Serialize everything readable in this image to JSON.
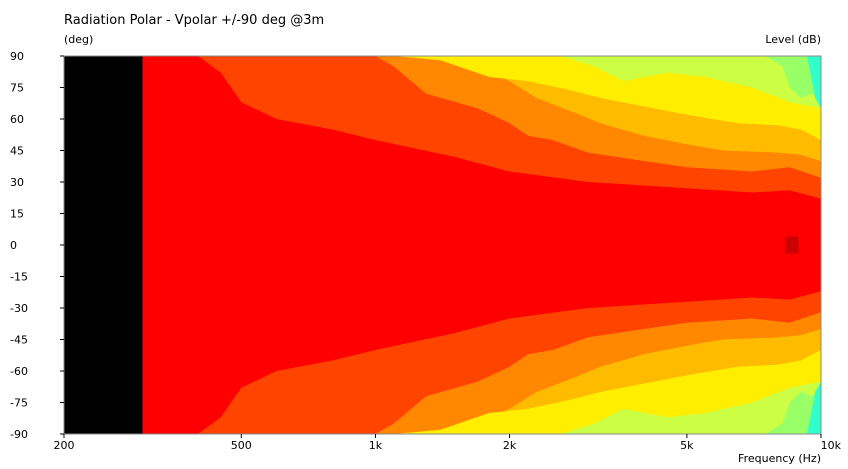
{
  "chart_data": {
    "type": "heatmap",
    "title": "Radiation Polar - Vpolar +/-90 deg @3m",
    "ylabel": "(deg)",
    "colorbar_label": "Level  (dB)",
    "xlabel": "Frequency  (Hz)",
    "x_scale": "log",
    "xlim": [
      200,
      10000
    ],
    "ylim": [
      -90,
      90
    ],
    "x_ticks": [
      {
        "value": 200,
        "label": "200"
      },
      {
        "value": 500,
        "label": "500"
      },
      {
        "value": 1000,
        "label": "1k"
      },
      {
        "value": 2000,
        "label": "2k"
      },
      {
        "value": 5000,
        "label": "5k"
      },
      {
        "value": 10000,
        "label": "10k"
      }
    ],
    "y_ticks": [
      90,
      75,
      60,
      45,
      30,
      15,
      0,
      -15,
      -30,
      -45,
      -60,
      -75,
      -90
    ],
    "no_data_below_hz": 300,
    "no_data_color": "#000000",
    "color_bands": [
      {
        "name": "band-1",
        "color": "#ff0000"
      },
      {
        "name": "band-2",
        "color": "#ff4400"
      },
      {
        "name": "band-3",
        "color": "#ff8800"
      },
      {
        "name": "band-4",
        "color": "#ffbb00"
      },
      {
        "name": "band-5",
        "color": "#ffee00"
      },
      {
        "name": "band-6",
        "color": "#ccff44"
      },
      {
        "name": "band-7",
        "color": "#99ff66"
      },
      {
        "name": "band-8",
        "color": "#33ffcc"
      }
    ],
    "contours": [
      {
        "band": "band-2",
        "points": [
          [
            300,
            90
          ],
          [
            400,
            90
          ],
          [
            450,
            82
          ],
          [
            500,
            68
          ],
          [
            600,
            60
          ],
          [
            800,
            55
          ],
          [
            1000,
            50
          ],
          [
            1500,
            42
          ],
          [
            2000,
            35
          ],
          [
            3000,
            30
          ],
          [
            5000,
            27
          ],
          [
            7000,
            25
          ],
          [
            8500,
            26
          ],
          [
            10000,
            22
          ]
        ]
      },
      {
        "band": "band-3",
        "points": [
          [
            350,
            90
          ],
          [
            1000,
            90
          ],
          [
            1100,
            85
          ],
          [
            1300,
            72
          ],
          [
            1700,
            65
          ],
          [
            2000,
            58
          ],
          [
            2200,
            52
          ],
          [
            2500,
            50
          ],
          [
            3000,
            44
          ],
          [
            4000,
            40
          ],
          [
            5000,
            37
          ],
          [
            7000,
            35
          ],
          [
            8500,
            37
          ],
          [
            10000,
            32
          ]
        ]
      },
      {
        "band": "band-4",
        "points": [
          [
            550,
            90
          ],
          [
            1500,
            90
          ],
          [
            1700,
            85
          ],
          [
            2000,
            78
          ],
          [
            2300,
            70
          ],
          [
            2800,
            63
          ],
          [
            3200,
            58
          ],
          [
            4000,
            52
          ],
          [
            5000,
            48
          ],
          [
            6000,
            45
          ],
          [
            8000,
            44
          ],
          [
            9000,
            43
          ],
          [
            10000,
            40
          ]
        ]
      },
      {
        "band": "band-5",
        "points": [
          [
            1100,
            90
          ],
          [
            1400,
            88
          ],
          [
            1800,
            80
          ],
          [
            2200,
            78
          ],
          [
            2700,
            74
          ],
          [
            3200,
            70
          ],
          [
            4000,
            66
          ],
          [
            5000,
            62
          ],
          [
            6500,
            58
          ],
          [
            8000,
            57
          ],
          [
            9000,
            55
          ],
          [
            10000,
            50
          ]
        ]
      },
      {
        "band": "band-6",
        "points": [
          [
            2600,
            90
          ],
          [
            3100,
            85
          ],
          [
            3600,
            78
          ],
          [
            4500,
            82
          ],
          [
            5500,
            80
          ],
          [
            7000,
            75
          ],
          [
            8500,
            68
          ],
          [
            10000,
            65
          ]
        ]
      },
      {
        "band": "band-7",
        "points": [
          [
            7500,
            90
          ],
          [
            8200,
            85
          ],
          [
            8500,
            75
          ],
          [
            9000,
            70
          ],
          [
            9500,
            72
          ],
          [
            10000,
            70
          ]
        ]
      },
      {
        "band": "band-8",
        "points": [
          [
            9300,
            90
          ],
          [
            9500,
            80
          ],
          [
            9700,
            70
          ],
          [
            10000,
            65
          ]
        ]
      }
    ],
    "annotations": [
      {
        "name": "peak-marker",
        "x_range": [
          8300,
          8900
        ],
        "y_range": [
          -4,
          4
        ],
        "color": "#cc0000"
      }
    ]
  }
}
